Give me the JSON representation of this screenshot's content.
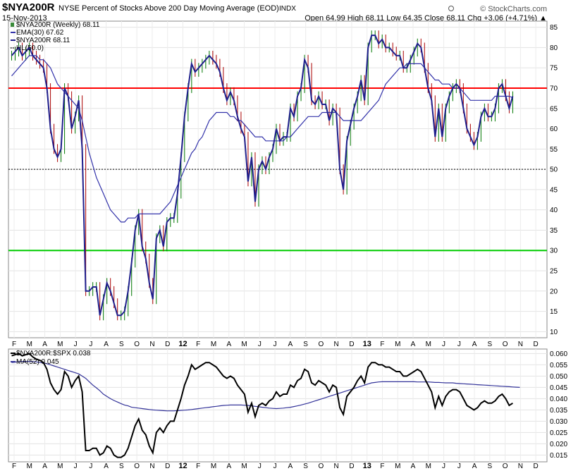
{
  "header": {
    "symbol": "$NYA200R",
    "description": "NYSE Percent of Stocks Above 200 Day Moving Average (EOD)",
    "exchange": "INDX",
    "date": "15-Nov-2013",
    "watermark": "© StockCharts.com",
    "quote": "Open 64.99   High 68.11   Low 64.35   Close 68.11   Chg +3.06 (+4.71%) ▲",
    "up_color": "#008000"
  },
  "main_panel": {
    "legend": [
      "$NYA200R (Weekly) 68.11",
      "EMA(30) 67.62",
      "$NYA200R 68.11",
      "HL(50.0)"
    ],
    "y_ticks": [
      10,
      15,
      20,
      25,
      30,
      35,
      40,
      45,
      50,
      55,
      60,
      65,
      70,
      75,
      80,
      85
    ],
    "ylim": [
      8.5,
      86.5
    ],
    "ref_lines": [
      {
        "value": 70,
        "color": "#ff0000"
      },
      {
        "value": 30,
        "color": "#00cc00"
      },
      {
        "value": 50,
        "color": "#000000",
        "style": "dotted"
      }
    ],
    "colors": {
      "price": "#1f1f8c",
      "ema": "#3333aa",
      "up_bar": "#007700",
      "down_bar": "#aa0000"
    }
  },
  "x_axis": {
    "labels": [
      "F",
      "M",
      "A",
      "M",
      "J",
      "J",
      "A",
      "S",
      "O",
      "N",
      "D",
      "12",
      "F",
      "M",
      "A",
      "M",
      "J",
      "J",
      "A",
      "S",
      "O",
      "N",
      "D",
      "13",
      "F",
      "M",
      "A",
      "M",
      "J",
      "J",
      "A",
      "S",
      "O",
      "N",
      "D"
    ],
    "bold_labels": [
      "12",
      "13"
    ]
  },
  "lower_panel": {
    "legend": [
      "$NYA200R:$SPX 0.038",
      "MA(52) 0.045"
    ],
    "y_ticks": [
      "0.015",
      "0.020",
      "0.025",
      "0.030",
      "0.035",
      "0.040",
      "0.045",
      "0.050",
      "0.055",
      "0.060"
    ],
    "ylim": [
      0.012,
      0.062
    ],
    "colors": {
      "ratio": "#000000",
      "ma": "#333399"
    }
  },
  "chart_data": [
    {
      "type": "line",
      "title": "$NYA200R NYSE Percent of Stocks Above 200 Day Moving Average (EOD)",
      "x_start": "2011-02-04",
      "x_interval": "weekly",
      "series": [
        {
          "name": "$NYA200R (Weekly)",
          "values": [
            78,
            79,
            80,
            78,
            79,
            80,
            78,
            77,
            76,
            75,
            70,
            60,
            55,
            53,
            55,
            70,
            68,
            60,
            63,
            67,
            55,
            20,
            20,
            21,
            21,
            14,
            18,
            22,
            20,
            17,
            14,
            14,
            15,
            20,
            27,
            35,
            39,
            31,
            28,
            22,
            18,
            33,
            35,
            31,
            37,
            38,
            38,
            44,
            53,
            63,
            70,
            76,
            74,
            75,
            76,
            77,
            78,
            77,
            76,
            74,
            70,
            67,
            69,
            67,
            63,
            60,
            58,
            47,
            53,
            42,
            50,
            52,
            50,
            53,
            55,
            60,
            57,
            58,
            58,
            65,
            63,
            68,
            70,
            77,
            75,
            67,
            66,
            68,
            66,
            66,
            62,
            65,
            64,
            50,
            45,
            57,
            61,
            65,
            68,
            72,
            67,
            80,
            83,
            83,
            81,
            82,
            80,
            80,
            79,
            78,
            78,
            75,
            75,
            77,
            79,
            81,
            80,
            75,
            70,
            67,
            58,
            65,
            58,
            65,
            68,
            70,
            71,
            70,
            65,
            60,
            58,
            56,
            58,
            63,
            65,
            63,
            63,
            65,
            70,
            71,
            68,
            65,
            68
          ]
        },
        {
          "name": "EMA(30)",
          "values": [
            73,
            74,
            75,
            76,
            77,
            78,
            78,
            78,
            77,
            77,
            76,
            75,
            73,
            71,
            70,
            69,
            68,
            67,
            66,
            65,
            62,
            58,
            54,
            51,
            48,
            46,
            44,
            42,
            40,
            39,
            38,
            37,
            37,
            38,
            38,
            38,
            39,
            39,
            39,
            39,
            39,
            39,
            39,
            40,
            41,
            42,
            44,
            46,
            48,
            50,
            52,
            54,
            55,
            57,
            58,
            60,
            62,
            63,
            64,
            64,
            64,
            64,
            63,
            63,
            62,
            62,
            61,
            60,
            59,
            58,
            58,
            58,
            57,
            57,
            57,
            57,
            57,
            57,
            58,
            58,
            59,
            60,
            61,
            62,
            63,
            63,
            63,
            63,
            64,
            64,
            64,
            64,
            64,
            63,
            62,
            62,
            62,
            62,
            62,
            62,
            63,
            64,
            65,
            66,
            67,
            69,
            71,
            72,
            73,
            74,
            75,
            75,
            76,
            76,
            76,
            76,
            76,
            75,
            74,
            73,
            72,
            72,
            71,
            71,
            71,
            70,
            70,
            70,
            69,
            68,
            67,
            67,
            67,
            67,
            67,
            67,
            67,
            68,
            68,
            68,
            68,
            68,
            67.62
          ]
        }
      ],
      "reference_lines": [
        70,
        30,
        50
      ],
      "ylim": [
        8.5,
        86.5
      ],
      "grid": true,
      "legend_position": "top-left"
    },
    {
      "type": "line",
      "title": "$NYA200R:$SPX",
      "x_start": "2011-02-04",
      "x_interval": "weekly",
      "series": [
        {
          "name": "$NYA200R:$SPX",
          "values": [
            0.059,
            0.0595,
            0.06,
            0.059,
            0.0595,
            0.06,
            0.0585,
            0.0575,
            0.057,
            0.056,
            0.053,
            0.047,
            0.044,
            0.042,
            0.044,
            0.052,
            0.05,
            0.045,
            0.048,
            0.05,
            0.043,
            0.017,
            0.017,
            0.018,
            0.018,
            0.015,
            0.016,
            0.019,
            0.018,
            0.015,
            0.014,
            0.014,
            0.015,
            0.018,
            0.023,
            0.028,
            0.031,
            0.026,
            0.024,
            0.019,
            0.016,
            0.025,
            0.027,
            0.025,
            0.028,
            0.03,
            0.03,
            0.035,
            0.04,
            0.046,
            0.05,
            0.055,
            0.053,
            0.054,
            0.055,
            0.056,
            0.056,
            0.055,
            0.054,
            0.052,
            0.05,
            0.049,
            0.05,
            0.049,
            0.046,
            0.044,
            0.042,
            0.034,
            0.038,
            0.032,
            0.037,
            0.038,
            0.037,
            0.039,
            0.04,
            0.043,
            0.041,
            0.042,
            0.042,
            0.046,
            0.045,
            0.048,
            0.049,
            0.053,
            0.052,
            0.047,
            0.046,
            0.048,
            0.047,
            0.046,
            0.043,
            0.046,
            0.045,
            0.036,
            0.033,
            0.041,
            0.043,
            0.045,
            0.048,
            0.05,
            0.047,
            0.054,
            0.056,
            0.056,
            0.055,
            0.055,
            0.054,
            0.054,
            0.053,
            0.052,
            0.052,
            0.05,
            0.05,
            0.051,
            0.052,
            0.053,
            0.052,
            0.049,
            0.046,
            0.043,
            0.036,
            0.041,
            0.037,
            0.041,
            0.043,
            0.044,
            0.044,
            0.043,
            0.04,
            0.037,
            0.036,
            0.035,
            0.036,
            0.038,
            0.039,
            0.038,
            0.038,
            0.039,
            0.041,
            0.042,
            0.04,
            0.037,
            0.038
          ]
        },
        {
          "name": "MA(52)",
          "values": [
            0.056,
            0.0562,
            0.0564,
            0.0565,
            0.0565,
            0.0565,
            0.0564,
            0.0563,
            0.056,
            0.0558,
            0.0555,
            0.055,
            0.0545,
            0.054,
            0.0535,
            0.053,
            0.0525,
            0.052,
            0.0515,
            0.051,
            0.05,
            0.049,
            0.0475,
            0.046,
            0.0448,
            0.0435,
            0.042,
            0.041,
            0.04,
            0.0392,
            0.0385,
            0.0378,
            0.0372,
            0.0368,
            0.0362,
            0.036,
            0.0358,
            0.0356,
            0.0354,
            0.0352,
            0.035,
            0.0349,
            0.0348,
            0.0347,
            0.0346,
            0.0346,
            0.0346,
            0.0347,
            0.0348,
            0.0349,
            0.035,
            0.0352,
            0.0354,
            0.0356,
            0.0358,
            0.036,
            0.0362,
            0.0364,
            0.0366,
            0.0368,
            0.037,
            0.0371,
            0.0372,
            0.0372,
            0.0372,
            0.0372,
            0.0371,
            0.037,
            0.0368,
            0.0366,
            0.0364,
            0.0362,
            0.036,
            0.0358,
            0.0357,
            0.0356,
            0.0357,
            0.0358,
            0.036,
            0.0362,
            0.0365,
            0.0368,
            0.0372,
            0.0376,
            0.038,
            0.0385,
            0.039,
            0.0395,
            0.04,
            0.0405,
            0.041,
            0.0415,
            0.042,
            0.0425,
            0.043,
            0.0435,
            0.044,
            0.0445,
            0.045,
            0.0455,
            0.046,
            0.0465,
            0.047,
            0.0472,
            0.0474,
            0.0475,
            0.0475,
            0.0475,
            0.0475,
            0.0475,
            0.0475,
            0.0475,
            0.0475,
            0.0475,
            0.0475,
            0.0474,
            0.0474,
            0.0474,
            0.0474,
            0.0473,
            0.0472,
            0.0472,
            0.0471,
            0.047,
            0.047,
            0.047,
            0.0468,
            0.0467,
            0.0466,
            0.0465,
            0.0464,
            0.0463,
            0.0462,
            0.0461,
            0.046,
            0.0459,
            0.0458,
            0.0457,
            0.0456,
            0.0455,
            0.0454,
            0.0453,
            0.0452,
            0.0451,
            0.045
          ]
        }
      ],
      "ylim": [
        0.012,
        0.062
      ],
      "grid": true,
      "legend_position": "top-left"
    }
  ]
}
